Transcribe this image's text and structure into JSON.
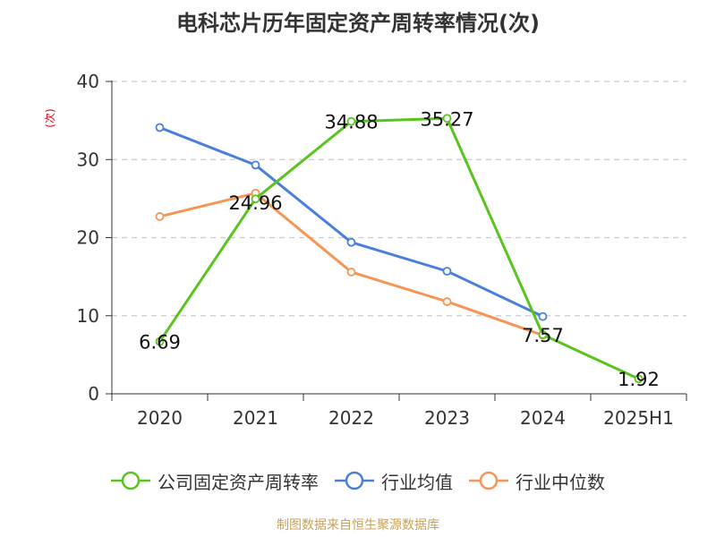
{
  "colors": {
    "company": "#5ac41f",
    "industry_avg": "#4a7fdb",
    "industry_median": "#f79556"
  },
  "chart_data": {
    "type": "line",
    "title": "电科芯片历年固定资产周转率情况(次)",
    "y_unit": "(次)",
    "xlabel": "",
    "ylabel": "",
    "categories": [
      "2020",
      "2021",
      "2022",
      "2023",
      "2024",
      "2025H1"
    ],
    "ylim": [
      0,
      40
    ],
    "yticks": [
      0,
      10,
      20,
      30,
      40
    ],
    "grid": true,
    "legend_position": "bottom",
    "series": [
      {
        "name": "公司固定资产周转率",
        "values": [
          6.69,
          24.96,
          34.88,
          35.27,
          7.57,
          1.92
        ],
        "labels": [
          "6.69",
          "24.96",
          "34.88",
          "35.27",
          "7.57",
          "1.92"
        ]
      },
      {
        "name": "行业均值",
        "values": [
          34.1,
          29.3,
          19.4,
          15.7,
          9.9,
          null
        ]
      },
      {
        "name": "行业中位数",
        "values": [
          22.7,
          25.7,
          15.6,
          11.8,
          7.5,
          null
        ]
      }
    ]
  },
  "source": "制图数据来自恒生聚源数据库"
}
